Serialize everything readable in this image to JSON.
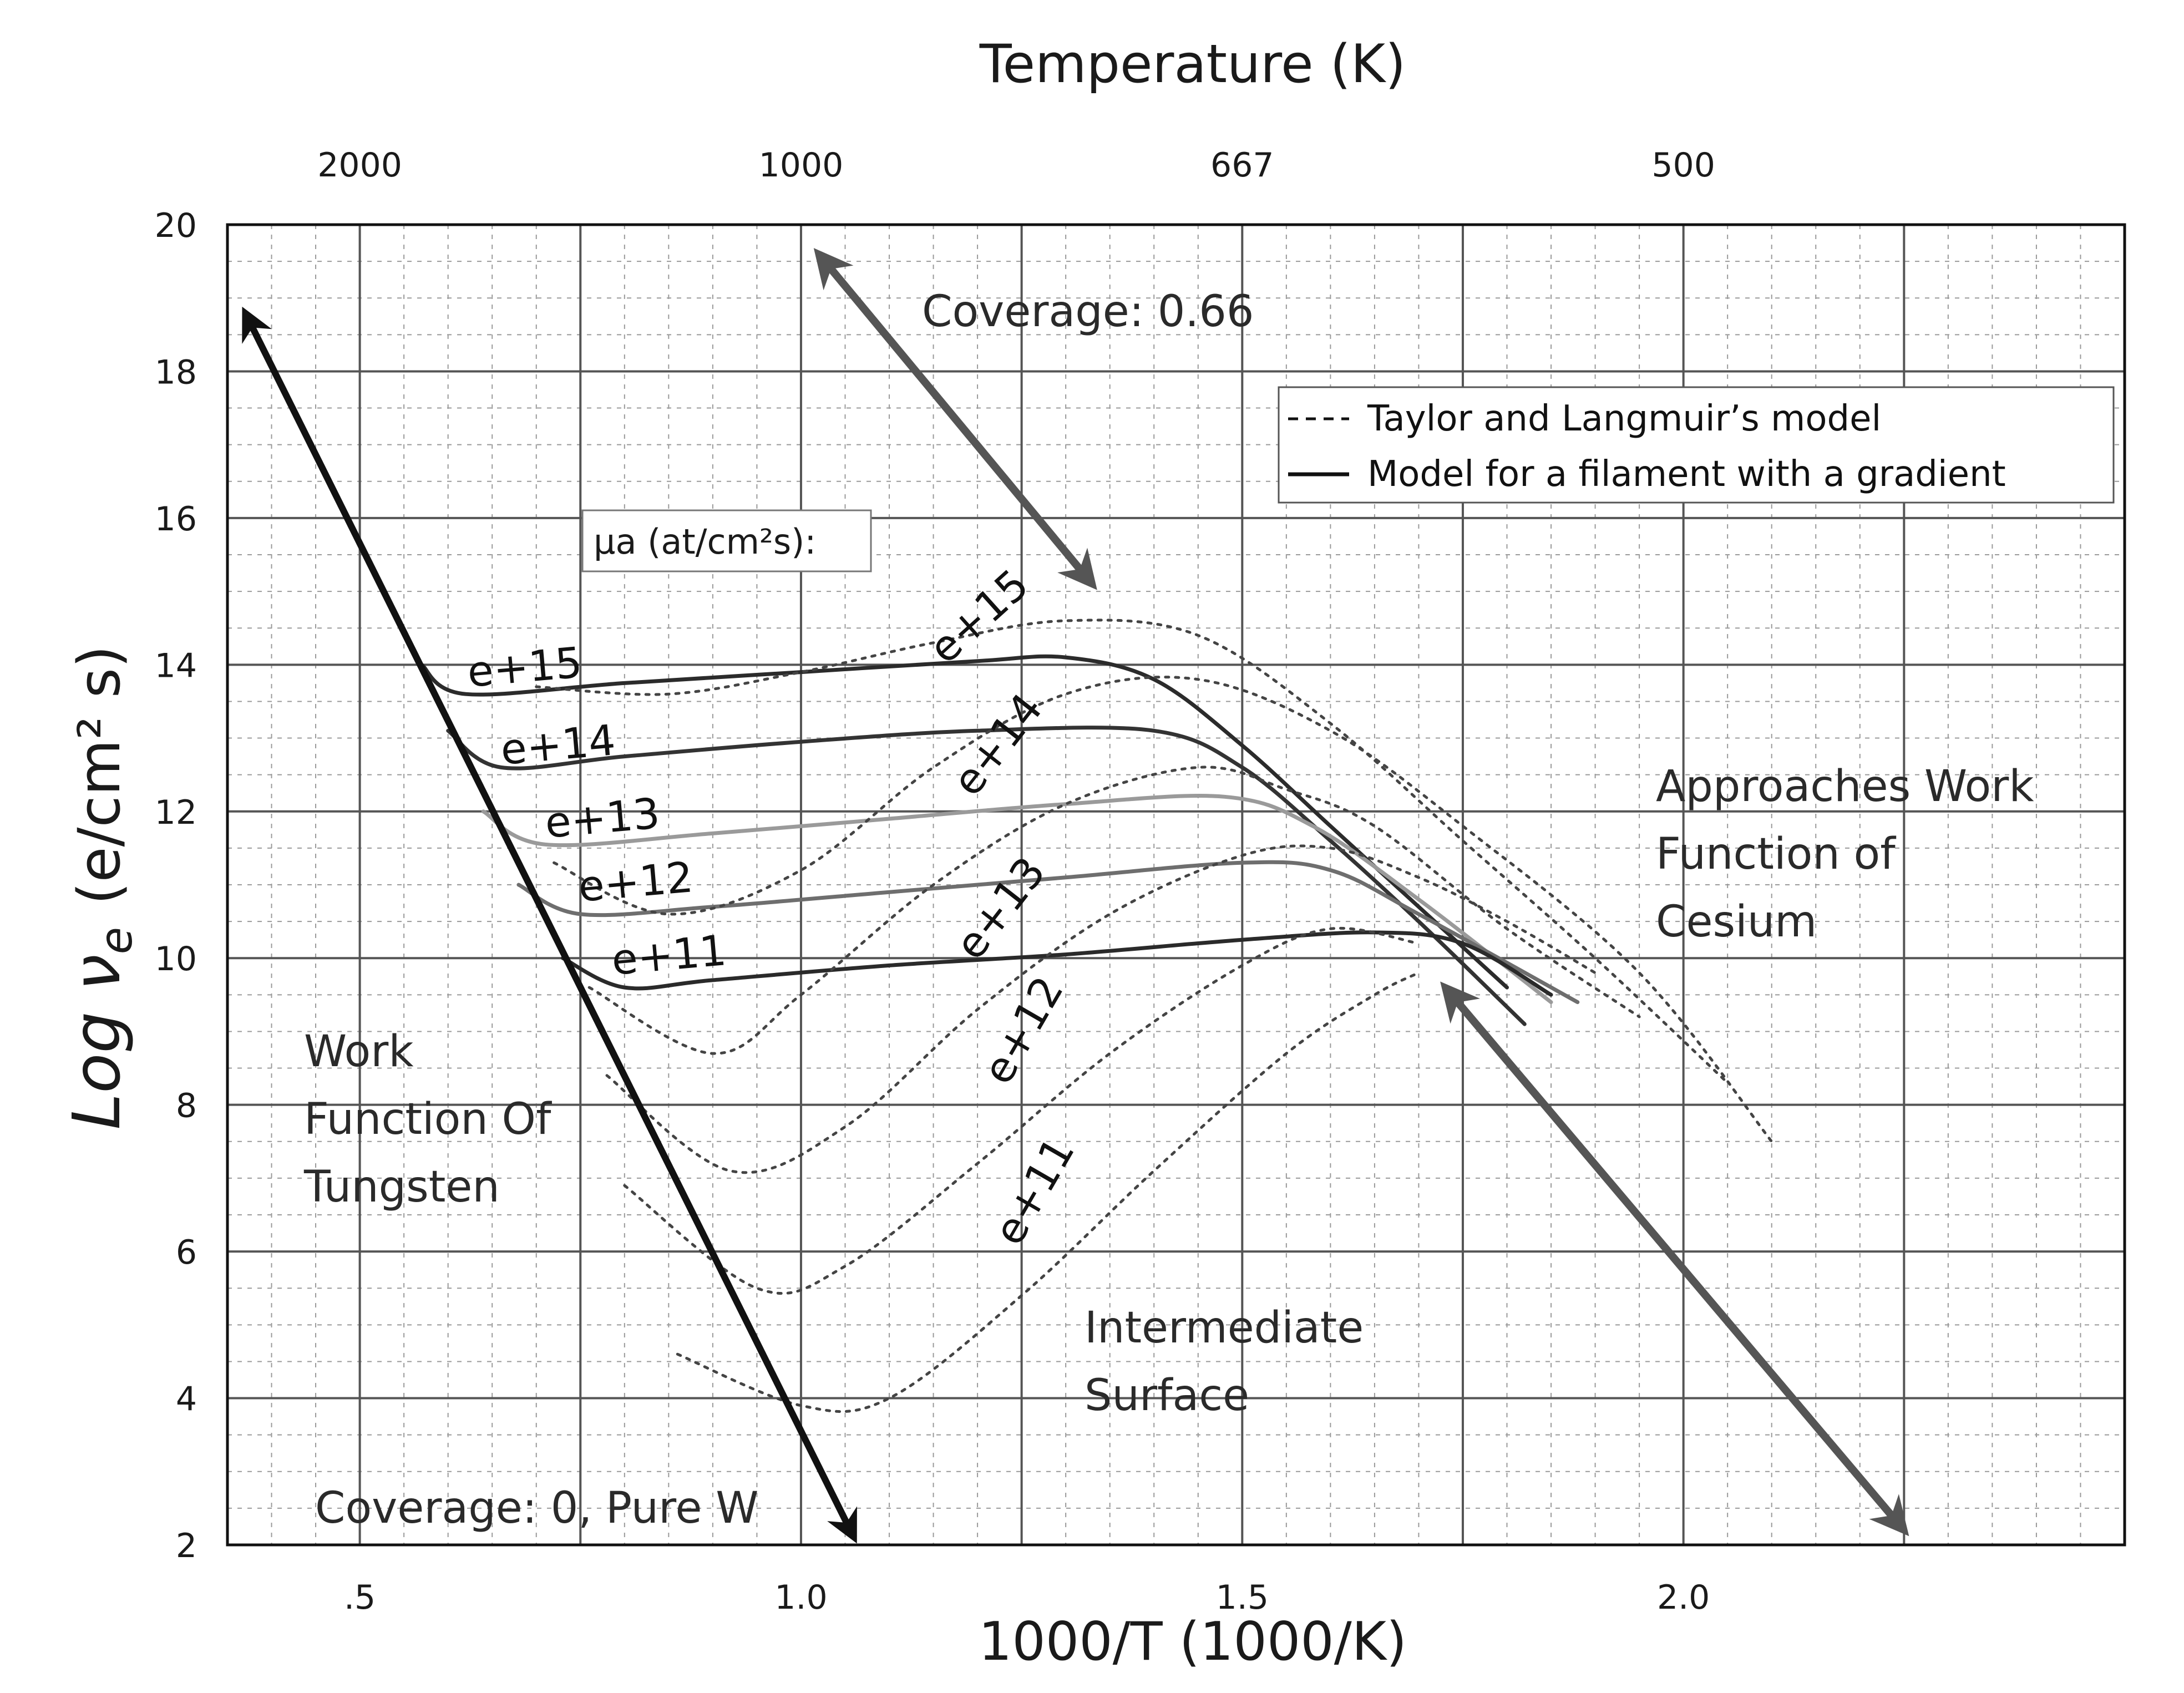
{
  "chart_data": {
    "type": "line",
    "top_axis_title": "Temperature (K)",
    "top_tick_labels": [
      {
        "value": 0.5,
        "label": "2000"
      },
      {
        "value": 1.0,
        "label": "1000"
      },
      {
        "value": 1.5,
        "label": "667"
      },
      {
        "value": 2.0,
        "label": "500"
      }
    ],
    "xlabel": "1000/T  (1000/K)",
    "ylabel": "Log ν",
    "ylabel_sub": "e",
    "ylabel_units": "(e/cm² s)",
    "x_tick_labels": [
      {
        "value": 0.5,
        "label": ".5"
      },
      {
        "value": 1.0,
        "label": "1.0"
      },
      {
        "value": 1.5,
        "label": "1.5"
      },
      {
        "value": 2.0,
        "label": "2.0"
      }
    ],
    "y_tick_labels": [
      "2",
      "4",
      "6",
      "8",
      "10",
      "12",
      "14",
      "16",
      "18",
      "20"
    ],
    "xlim": [
      0.35,
      2.5
    ],
    "ylim": [
      2,
      20
    ],
    "grid": true,
    "legend": {
      "position": "top-right",
      "entries": [
        {
          "style": "dashed",
          "label": "Taylor and Langmuir’s model"
        },
        {
          "style": "solid",
          "label": "Model for a filament with a gradient"
        }
      ]
    },
    "series_title": "μa (at/cm²s):",
    "series": [
      {
        "name": "e+15",
        "style": "solid",
        "color": "#2b2b2b",
        "x": [
          0.57,
          0.62,
          0.8,
          1.0,
          1.2,
          1.3,
          1.4,
          1.5,
          1.6,
          1.7,
          1.8
        ],
        "y": [
          14.0,
          13.6,
          13.75,
          13.9,
          14.05,
          14.1,
          13.8,
          12.9,
          11.8,
          10.7,
          9.6
        ]
      },
      {
        "name": "e+14",
        "style": "solid",
        "color": "#333333",
        "x": [
          0.6,
          0.66,
          0.8,
          1.0,
          1.2,
          1.4,
          1.5,
          1.6,
          1.7,
          1.82
        ],
        "y": [
          13.1,
          12.6,
          12.75,
          12.95,
          13.1,
          13.1,
          12.6,
          11.6,
          10.5,
          9.1
        ]
      },
      {
        "name": "e+13",
        "style": "solid",
        "color": "#9a9a9a",
        "x": [
          0.64,
          0.71,
          0.9,
          1.1,
          1.3,
          1.48,
          1.58,
          1.7,
          1.85
        ],
        "y": [
          12.0,
          11.55,
          11.7,
          11.9,
          12.1,
          12.2,
          11.8,
          10.8,
          9.4
        ]
      },
      {
        "name": "e+12",
        "style": "solid",
        "color": "#6e6e6e",
        "x": [
          0.68,
          0.75,
          0.9,
          1.1,
          1.3,
          1.5,
          1.6,
          1.7,
          1.88
        ],
        "y": [
          11.0,
          10.6,
          10.7,
          10.9,
          11.1,
          11.3,
          11.2,
          10.6,
          9.4
        ]
      },
      {
        "name": "e+11",
        "style": "solid",
        "color": "#2a2a2a",
        "x": [
          0.73,
          0.8,
          0.9,
          1.1,
          1.3,
          1.5,
          1.65,
          1.75,
          1.85
        ],
        "y": [
          10.0,
          9.6,
          9.7,
          9.9,
          10.05,
          10.25,
          10.35,
          10.2,
          9.5
        ]
      },
      {
        "name": "e+15",
        "style": "dashed",
        "color": "#444444",
        "x": [
          0.7,
          0.85,
          1.0,
          1.15,
          1.3,
          1.45,
          1.6,
          1.75,
          1.9,
          2.05
        ],
        "y": [
          13.7,
          13.6,
          13.9,
          14.3,
          14.6,
          14.4,
          13.2,
          11.6,
          10.0,
          8.3
        ]
      },
      {
        "name": "e+14",
        "style": "dashed",
        "color": "#444444",
        "x": [
          0.72,
          0.85,
          1.0,
          1.15,
          1.3,
          1.45,
          1.6,
          1.75,
          1.95,
          2.1
        ],
        "y": [
          11.3,
          10.6,
          11.2,
          12.6,
          13.6,
          13.8,
          13.1,
          11.8,
          9.8,
          7.5
        ]
      },
      {
        "name": "e+13",
        "style": "dashed",
        "color": "#444444",
        "x": [
          0.76,
          0.9,
          1.0,
          1.15,
          1.3,
          1.45,
          1.55,
          1.65,
          1.8,
          1.95
        ],
        "y": [
          9.6,
          8.7,
          9.5,
          11.0,
          12.1,
          12.6,
          12.3,
          11.8,
          10.4,
          9.2
        ]
      },
      {
        "name": "e+12",
        "style": "dashed",
        "color": "#444444",
        "x": [
          0.78,
          0.92,
          1.05,
          1.2,
          1.35,
          1.5,
          1.6,
          1.7,
          1.8,
          1.9
        ],
        "y": [
          8.4,
          7.1,
          7.7,
          9.3,
          10.6,
          11.4,
          11.5,
          11.1,
          10.5,
          9.8
        ]
      },
      {
        "name": "e+12",
        "style": "dashed",
        "color": "#444444",
        "x": [
          0.8,
          0.95,
          1.05,
          1.2,
          1.35,
          1.5,
          1.6,
          1.7
        ],
        "y": [
          6.9,
          5.5,
          5.8,
          7.2,
          8.7,
          9.9,
          10.4,
          10.2
        ]
      },
      {
        "name": "e+11",
        "style": "dashed",
        "color": "#444444",
        "x": [
          0.86,
          1.0,
          1.1,
          1.25,
          1.4,
          1.55,
          1.65,
          1.7
        ],
        "y": [
          4.6,
          3.9,
          4.0,
          5.4,
          7.1,
          8.7,
          9.5,
          9.8
        ]
      }
    ],
    "curve_labels": [
      "e+15",
      "e+14",
      "e+13",
      "e+12",
      "e+11",
      "e+15",
      "e+14",
      "e+13",
      "e+12",
      "e+11"
    ],
    "annotations": {
      "coverage_high": "Coverage: 0.66",
      "coverage_zero": "Coverage: 0, Pure W",
      "work_function_tungsten": [
        "Work",
        "Function Of",
        "Tungsten"
      ],
      "approaches_cesium": [
        "Approaches Work",
        "Function of",
        "Cesium"
      ],
      "intermediate": [
        "Intermediate",
        "Surface"
      ]
    },
    "arrows": [
      {
        "name": "coverage-zero-arrow",
        "from": [
          0.37,
          18.8
        ],
        "to": [
          1.06,
          2.1
        ],
        "color": "#111111"
      },
      {
        "name": "coverage-high-arrow",
        "from": [
          1.02,
          19.6
        ],
        "to": [
          1.33,
          15.1
        ],
        "color": "#555555"
      },
      {
        "name": "cesium-arrow",
        "from": [
          1.73,
          9.6
        ],
        "to": [
          2.25,
          2.2
        ],
        "color": "#555555"
      }
    ]
  }
}
